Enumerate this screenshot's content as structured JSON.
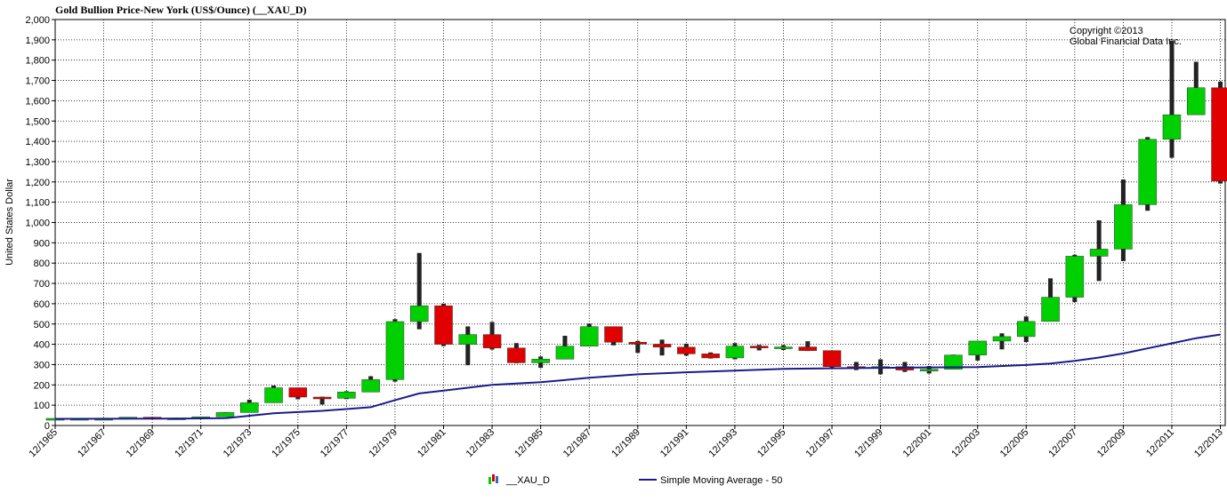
{
  "chart_data": {
    "type": "candlestick",
    "title": "Gold Bullion Price-New York (US$/Ounce) (__XAU_D)",
    "ylabel": "United States Dollar",
    "copyright": [
      "Copyright ©2013",
      "Global Financial Data Inc."
    ],
    "ylim": [
      0,
      2000
    ],
    "ytick_step": 100,
    "grid": true,
    "legend_position": "bottom",
    "x_tick_labels": [
      "12/1965",
      "12/1967",
      "12/1969",
      "12/1971",
      "12/1973",
      "12/1975",
      "12/1977",
      "12/1979",
      "12/1981",
      "12/1983",
      "12/1985",
      "12/1987",
      "12/1989",
      "12/1991",
      "12/1993",
      "12/1995",
      "12/1997",
      "12/1999",
      "12/2001",
      "12/2003",
      "12/2005",
      "12/2007",
      "12/2009",
      "12/2011",
      "12/2013"
    ],
    "candles": [
      {
        "year": 1965,
        "open": 35,
        "high": 35,
        "low": 35,
        "close": 35
      },
      {
        "year": 1966,
        "open": 35,
        "high": 35,
        "low": 35,
        "close": 35
      },
      {
        "year": 1967,
        "open": 35,
        "high": 35,
        "low": 35,
        "close": 35
      },
      {
        "year": 1968,
        "open": 35,
        "high": 40,
        "low": 35,
        "close": 41
      },
      {
        "year": 1969,
        "open": 41,
        "high": 42,
        "low": 35,
        "close": 35
      },
      {
        "year": 1970,
        "open": 35,
        "high": 38,
        "low": 35,
        "close": 37
      },
      {
        "year": 1971,
        "open": 37,
        "high": 43,
        "low": 37,
        "close": 43
      },
      {
        "year": 1972,
        "open": 43,
        "high": 66,
        "low": 43,
        "close": 64
      },
      {
        "year": 1973,
        "open": 64,
        "high": 127,
        "low": 64,
        "close": 112
      },
      {
        "year": 1974,
        "open": 112,
        "high": 197,
        "low": 112,
        "close": 186
      },
      {
        "year": 1975,
        "open": 186,
        "high": 186,
        "low": 129,
        "close": 140
      },
      {
        "year": 1976,
        "open": 140,
        "high": 142,
        "low": 103,
        "close": 134
      },
      {
        "year": 1977,
        "open": 134,
        "high": 169,
        "low": 130,
        "close": 165
      },
      {
        "year": 1978,
        "open": 165,
        "high": 243,
        "low": 165,
        "close": 226
      },
      {
        "year": 1979,
        "open": 226,
        "high": 524,
        "low": 216,
        "close": 512
      },
      {
        "year": 1980,
        "open": 512,
        "high": 850,
        "low": 474,
        "close": 590
      },
      {
        "year": 1981,
        "open": 590,
        "high": 600,
        "low": 391,
        "close": 400
      },
      {
        "year": 1982,
        "open": 400,
        "high": 488,
        "low": 297,
        "close": 448
      },
      {
        "year": 1983,
        "open": 448,
        "high": 510,
        "low": 374,
        "close": 382
      },
      {
        "year": 1984,
        "open": 382,
        "high": 406,
        "low": 307,
        "close": 309
      },
      {
        "year": 1985,
        "open": 309,
        "high": 340,
        "low": 284,
        "close": 327
      },
      {
        "year": 1986,
        "open": 327,
        "high": 442,
        "low": 326,
        "close": 391
      },
      {
        "year": 1987,
        "open": 391,
        "high": 502,
        "low": 390,
        "close": 487
      },
      {
        "year": 1988,
        "open": 487,
        "high": 485,
        "low": 395,
        "close": 410
      },
      {
        "year": 1989,
        "open": 410,
        "high": 417,
        "low": 358,
        "close": 401
      },
      {
        "year": 1990,
        "open": 401,
        "high": 423,
        "low": 345,
        "close": 386
      },
      {
        "year": 1991,
        "open": 386,
        "high": 403,
        "low": 344,
        "close": 353
      },
      {
        "year": 1992,
        "open": 353,
        "high": 360,
        "low": 330,
        "close": 333
      },
      {
        "year": 1993,
        "open": 333,
        "high": 406,
        "low": 326,
        "close": 391
      },
      {
        "year": 1994,
        "open": 391,
        "high": 397,
        "low": 370,
        "close": 383
      },
      {
        "year": 1995,
        "open": 383,
        "high": 396,
        "low": 372,
        "close": 387
      },
      {
        "year": 1996,
        "open": 387,
        "high": 415,
        "low": 367,
        "close": 369
      },
      {
        "year": 1997,
        "open": 369,
        "high": 367,
        "low": 283,
        "close": 290
      },
      {
        "year": 1998,
        "open": 290,
        "high": 313,
        "low": 273,
        "close": 288
      },
      {
        "year": 1999,
        "open": 288,
        "high": 326,
        "low": 252,
        "close": 290
      },
      {
        "year": 2000,
        "open": 290,
        "high": 313,
        "low": 264,
        "close": 273
      },
      {
        "year": 2001,
        "open": 273,
        "high": 293,
        "low": 256,
        "close": 277
      },
      {
        "year": 2002,
        "open": 277,
        "high": 349,
        "low": 277,
        "close": 347
      },
      {
        "year": 2003,
        "open": 347,
        "high": 416,
        "low": 320,
        "close": 416
      },
      {
        "year": 2004,
        "open": 416,
        "high": 454,
        "low": 375,
        "close": 438
      },
      {
        "year": 2005,
        "open": 438,
        "high": 537,
        "low": 411,
        "close": 513
      },
      {
        "year": 2006,
        "open": 513,
        "high": 725,
        "low": 513,
        "close": 632
      },
      {
        "year": 2007,
        "open": 632,
        "high": 841,
        "low": 608,
        "close": 834
      },
      {
        "year": 2008,
        "open": 834,
        "high": 1011,
        "low": 712,
        "close": 869
      },
      {
        "year": 2009,
        "open": 869,
        "high": 1212,
        "low": 810,
        "close": 1088
      },
      {
        "year": 2010,
        "open": 1088,
        "high": 1421,
        "low": 1058,
        "close": 1410
      },
      {
        "year": 2011,
        "open": 1410,
        "high": 1895,
        "low": 1319,
        "close": 1531
      },
      {
        "year": 2012,
        "open": 1531,
        "high": 1792,
        "low": 1540,
        "close": 1664
      },
      {
        "year": 2013,
        "open": 1664,
        "high": 1694,
        "low": 1192,
        "close": 1204
      }
    ],
    "series": [
      {
        "name": "__XAU_D",
        "kind": "candlestick",
        "up_color": "#00d000",
        "down_color": "#e00000",
        "wick_color": "#222222"
      },
      {
        "name": "Simple Moving Average - 50",
        "kind": "line",
        "color": "#1a1a8c",
        "x": [
          1965,
          1970,
          1972,
          1974,
          1976,
          1978,
          1979,
          1980,
          1981,
          1983,
          1985,
          1987,
          1989,
          1991,
          1993,
          1995,
          1997,
          1999,
          2001,
          2003,
          2005,
          2006,
          2007,
          2008,
          2009,
          2010,
          2011,
          2012,
          2013
        ],
        "values": [
          33,
          34,
          36,
          60,
          72,
          90,
          125,
          158,
          172,
          200,
          213,
          235,
          252,
          262,
          270,
          279,
          282,
          284,
          286,
          288,
          298,
          305,
          318,
          335,
          355,
          380,
          405,
          430,
          448
        ]
      }
    ]
  }
}
